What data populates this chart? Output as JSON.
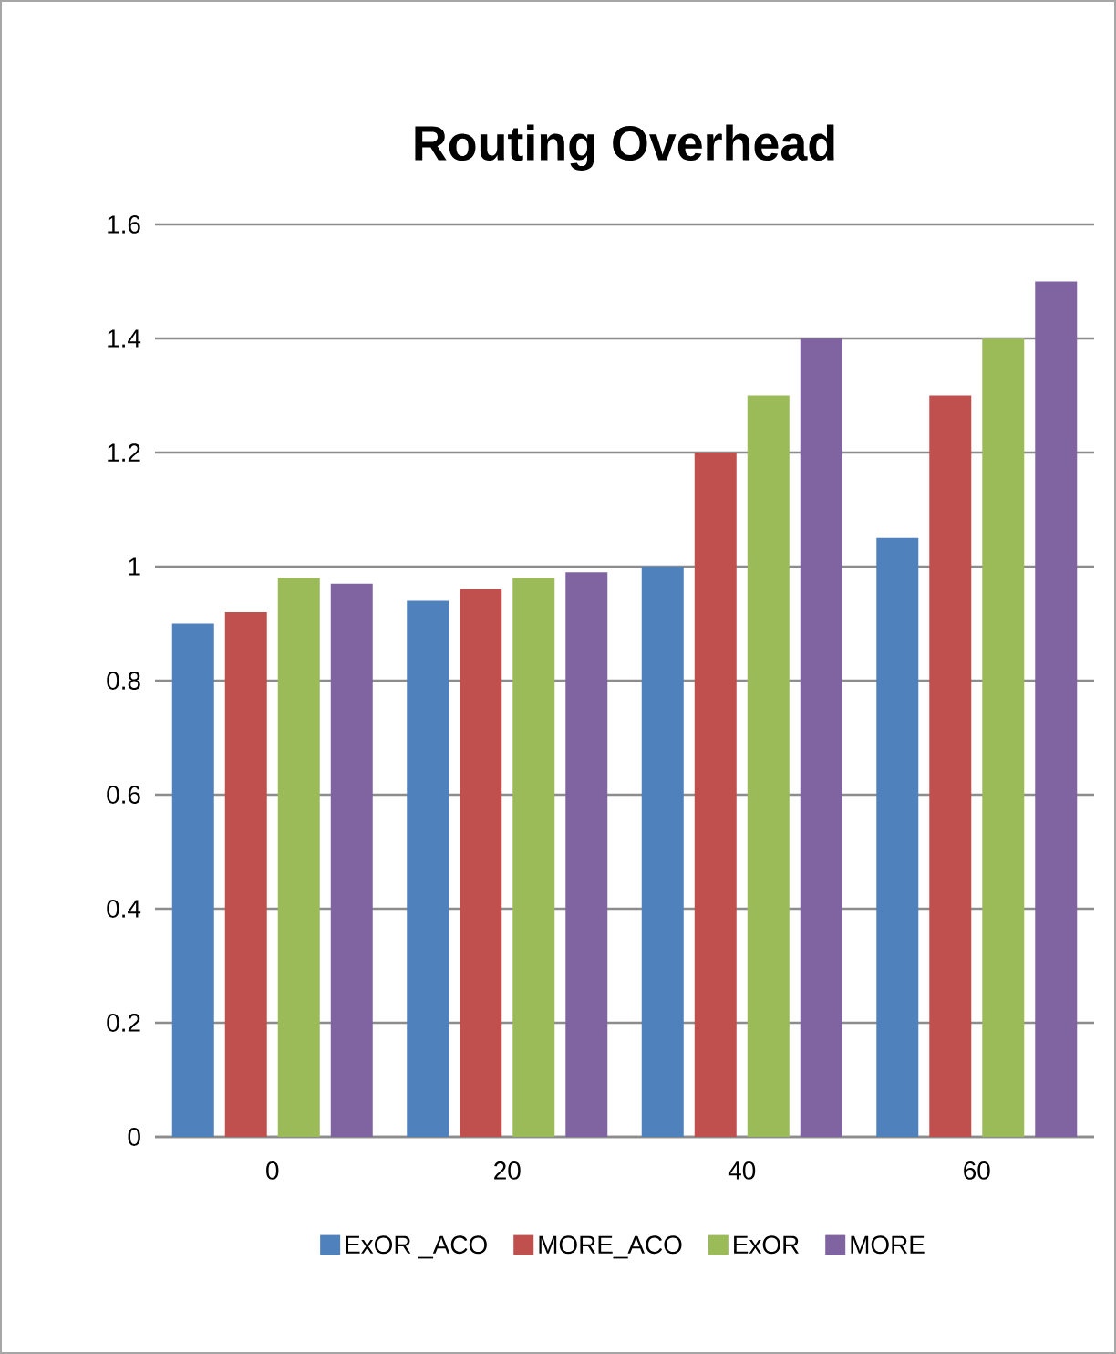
{
  "chart_data": {
    "type": "bar",
    "title": "Routing Overhead",
    "categories": [
      "0",
      "20",
      "40",
      "60"
    ],
    "series": [
      {
        "name": "ExOR _ACO",
        "color": "#4f81bd",
        "values": [
          0.9,
          0.94,
          1.0,
          1.05
        ]
      },
      {
        "name": "MORE_ACO",
        "color": "#c0504d",
        "values": [
          0.92,
          0.96,
          1.2,
          1.3
        ]
      },
      {
        "name": "ExOR",
        "color": "#9bbb59",
        "values": [
          0.98,
          0.98,
          1.3,
          1.4
        ]
      },
      {
        "name": "MORE",
        "color": "#8064a2",
        "values": [
          0.97,
          0.99,
          1.4,
          1.5
        ]
      }
    ],
    "ylim": [
      0,
      1.6
    ],
    "yticks": [
      0,
      0.2,
      0.4,
      0.6,
      0.8,
      1,
      1.2,
      1.4,
      1.6
    ],
    "grid": "y",
    "legend": "bottom"
  }
}
